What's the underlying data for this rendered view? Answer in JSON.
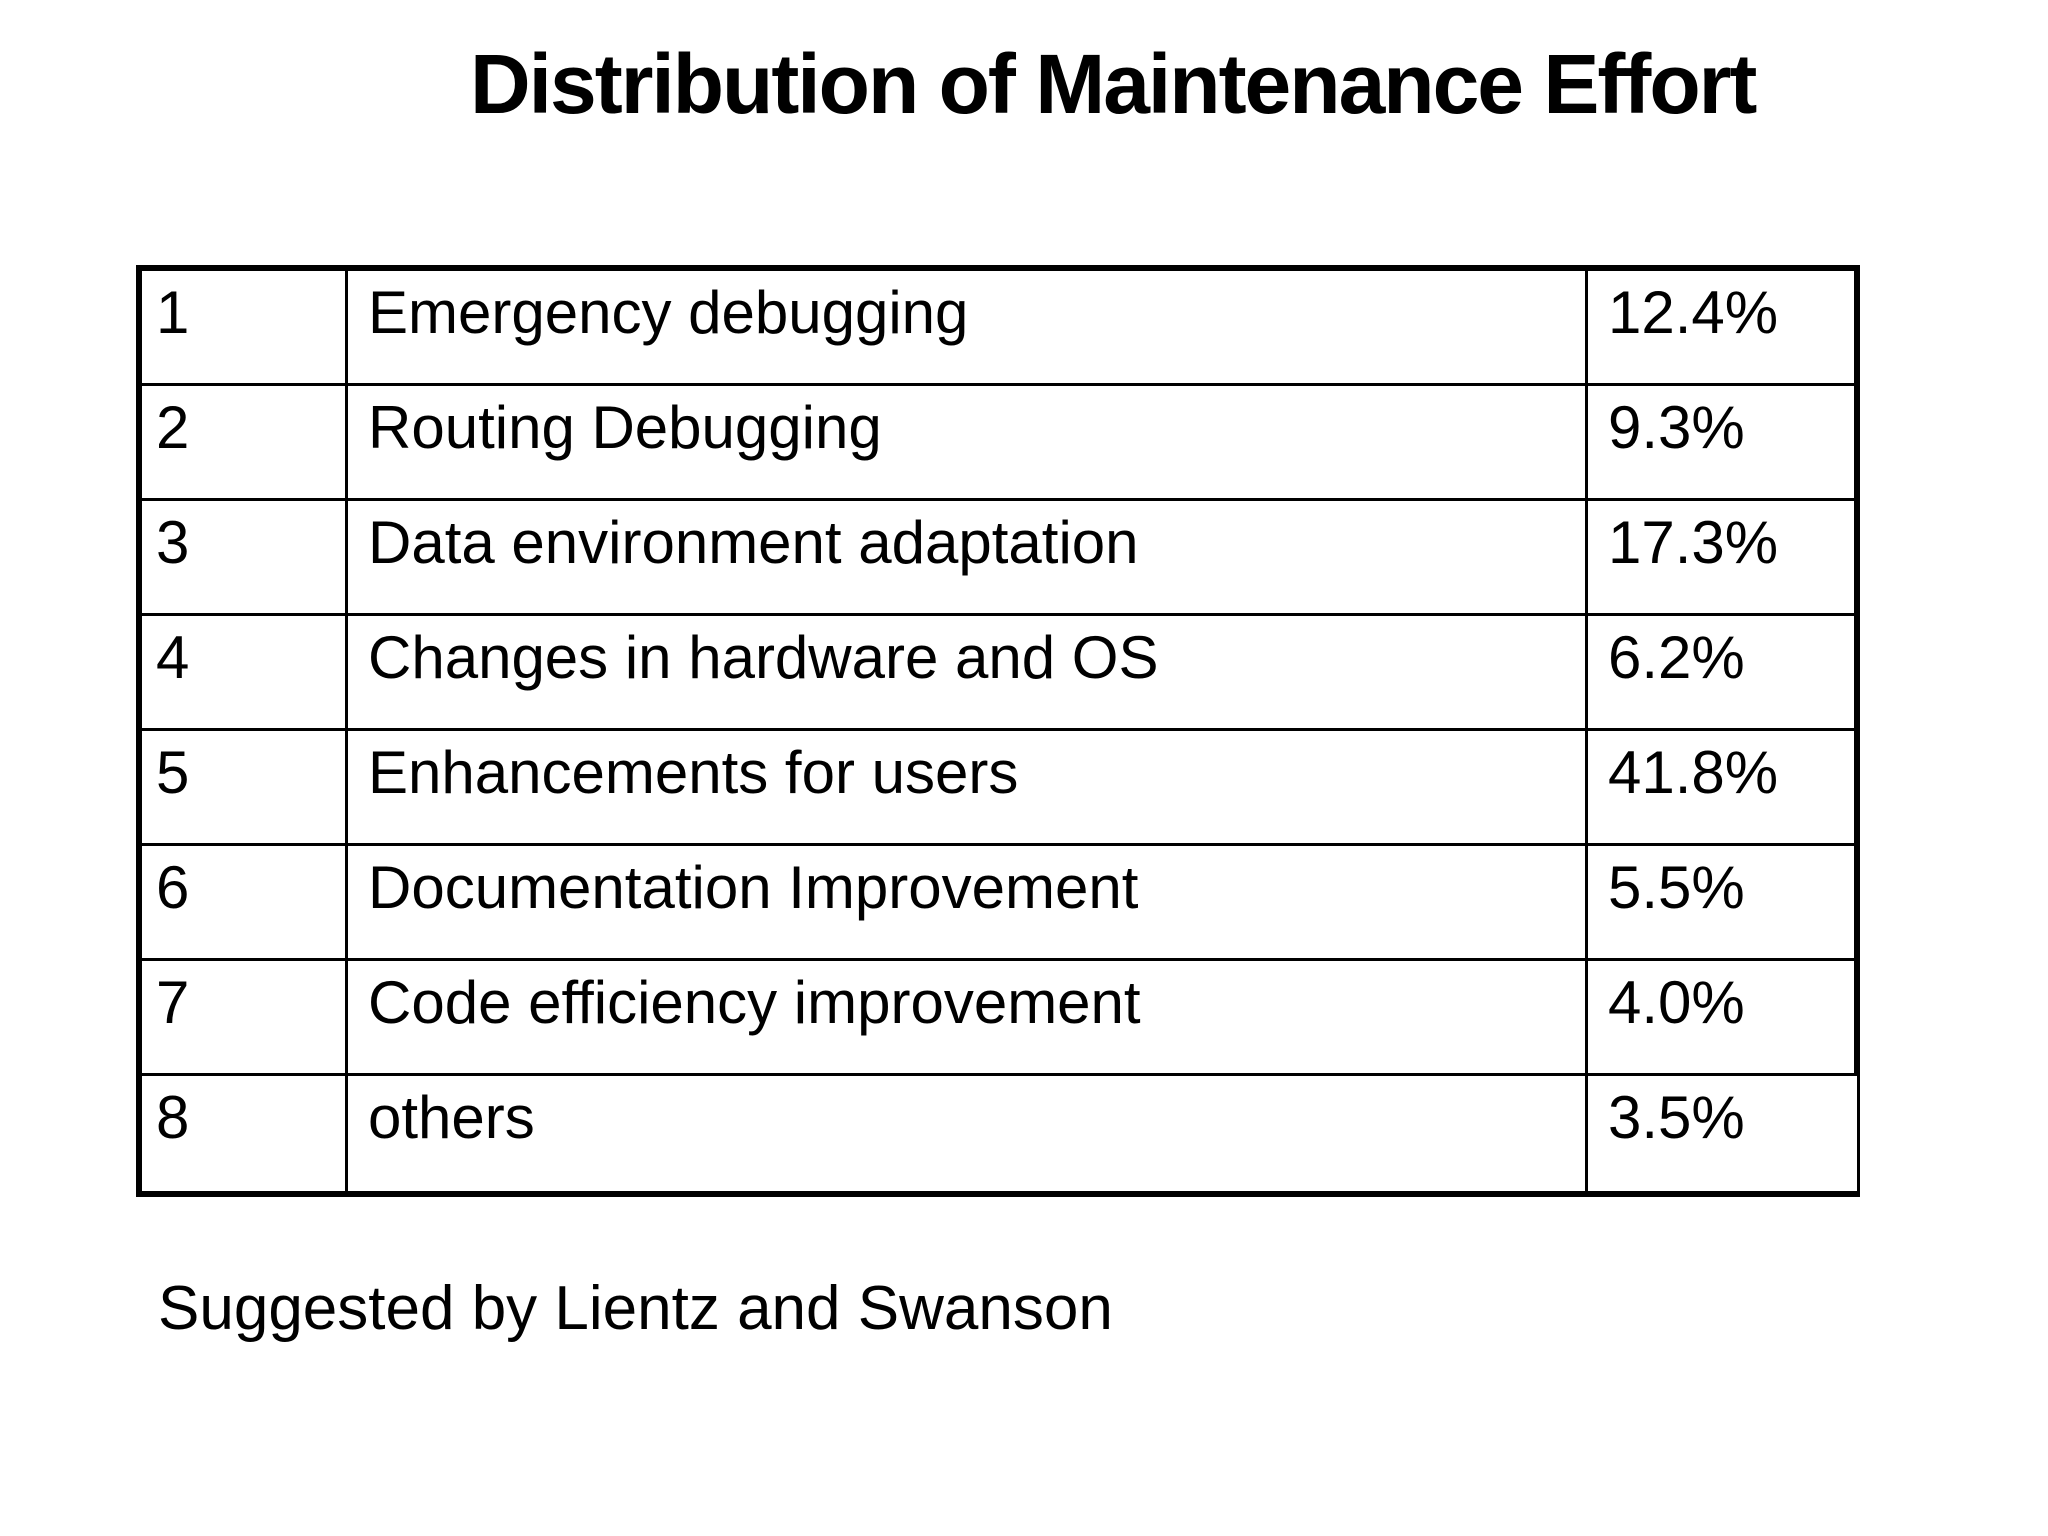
{
  "title": "Distribution of Maintenance Effort",
  "footer": "Suggested by Lientz and Swanson",
  "table": {
    "rows": [
      {
        "num": "1",
        "label": "Emergency debugging",
        "value": "12.4%"
      },
      {
        "num": "2",
        "label": "Routing Debugging",
        "value": "9.3%"
      },
      {
        "num": "3",
        "label": "Data environment adaptation",
        "value": "17.3%"
      },
      {
        "num": "4",
        "label": "Changes in hardware and OS",
        "value": "6.2%"
      },
      {
        "num": "5",
        "label": "Enhancements for users",
        "value": "41.8%"
      },
      {
        "num": "6",
        "label": "Documentation Improvement",
        "value": "5.5%"
      },
      {
        "num": "7",
        "label": "Code efficiency improvement",
        "value": "4.0%"
      },
      {
        "num": "8",
        "label": "others",
        "value": "3.5%"
      }
    ]
  },
  "chart_data": {
    "type": "table",
    "title": "Distribution of Maintenance Effort",
    "categories": [
      "Emergency debugging",
      "Routing Debugging",
      "Data environment adaptation",
      "Changes in hardware and OS",
      "Enhancements for users",
      "Documentation Improvement",
      "Code efficiency improvement",
      "others"
    ],
    "values_percent": [
      12.4,
      9.3,
      17.3,
      6.2,
      41.8,
      5.5,
      4.0,
      3.5
    ],
    "annotation": "Suggested by Lientz and Swanson"
  }
}
